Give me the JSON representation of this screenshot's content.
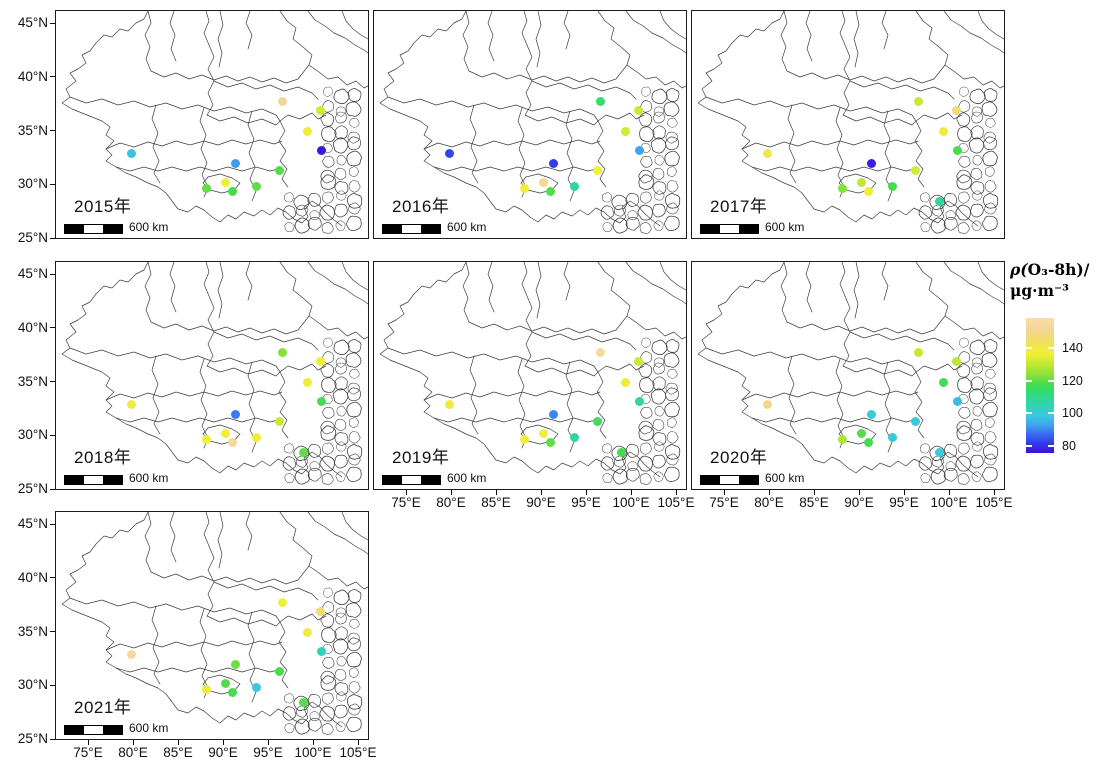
{
  "chart_data": {
    "type": "scatter",
    "subtype": "faceted-map-scatter",
    "scale_bar_label": "600 km",
    "axes": {
      "lon_tick_values": [
        75,
        80,
        85,
        90,
        95,
        100,
        105
      ],
      "lon_tick_labels": [
        "75°E",
        "80°E",
        "85°E",
        "90°E",
        "95°E",
        "100°E",
        "105°E"
      ],
      "lat_tick_values": [
        45,
        40,
        35,
        30,
        25
      ],
      "lat_tick_labels": [
        "45°N",
        "40°N",
        "35°N",
        "30°N",
        "25°N"
      ],
      "lon_range": [
        71.5,
        106.1
      ],
      "lat_range": [
        25.0,
        46.1
      ]
    },
    "colorbar": {
      "title_lines": [
        "ρ(O₃-8h)/",
        "μg·m⁻³"
      ],
      "tick_labels": [
        "140",
        "120",
        "100",
        "80"
      ],
      "tick_values": [
        140,
        120,
        100,
        80
      ],
      "value_range": [
        76,
        158
      ],
      "stops": [
        [
          158,
          "#F8DDA9"
        ],
        [
          151,
          "#F4D694"
        ],
        [
          145,
          "#F1DC6B"
        ],
        [
          140,
          "#F0E945"
        ],
        [
          136,
          "#EFEF33"
        ],
        [
          130,
          "#C2E934"
        ],
        [
          124,
          "#8FE23B"
        ],
        [
          118,
          "#48DB4D"
        ],
        [
          112,
          "#2FDA7C"
        ],
        [
          105,
          "#31D3B2"
        ],
        [
          99,
          "#38CBDC"
        ],
        [
          93,
          "#3FA4EC"
        ],
        [
          87,
          "#3767F0"
        ],
        [
          82,
          "#2F3CEB"
        ],
        [
          76,
          "#3D0EDF"
        ]
      ]
    },
    "stations": [
      {
        "lon": 96.6,
        "lat": 37.7
      },
      {
        "lon": 100.8,
        "lat": 36.9
      },
      {
        "lon": 99.4,
        "lat": 34.9
      },
      {
        "lon": 100.9,
        "lat": 33.1
      },
      {
        "lon": 79.8,
        "lat": 32.9
      },
      {
        "lon": 91.4,
        "lat": 31.9
      },
      {
        "lon": 96.3,
        "lat": 31.3
      },
      {
        "lon": 90.3,
        "lat": 30.2
      },
      {
        "lon": 88.2,
        "lat": 29.6
      },
      {
        "lon": 91.1,
        "lat": 29.3
      },
      {
        "lon": 93.7,
        "lat": 29.8
      },
      {
        "lon": 98.9,
        "lat": 28.4
      }
    ],
    "panels": [
      {
        "year_label": "2015年",
        "values": [
          151,
          132,
          138,
          77,
          98,
          92,
          119,
          137,
          120,
          118,
          120,
          null
        ]
      },
      {
        "year_label": "2016年",
        "values": [
          114,
          131,
          132,
          93,
          83,
          82,
          137,
          150,
          138,
          119,
          107,
          null
        ]
      },
      {
        "year_label": "2017年",
        "values": [
          130,
          147,
          139,
          118,
          141,
          78,
          132,
          130,
          123,
          137,
          118,
          108
        ]
      },
      {
        "year_label": "2018年",
        "values": [
          123,
          137,
          138,
          117,
          139,
          89,
          131,
          137,
          136,
          152,
          137,
          120
        ]
      },
      {
        "year_label": "2019年",
        "values": [
          154,
          131,
          138,
          108,
          139,
          90,
          116,
          137,
          137,
          120,
          108,
          118
        ]
      },
      {
        "year_label": "2020年",
        "values": [
          130,
          129,
          117,
          96,
          150,
          100,
          99,
          119,
          127,
          118,
          100,
          99
        ]
      },
      {
        "year_label": "2021年",
        "values": [
          137,
          146,
          139,
          103,
          153,
          121,
          118,
          119,
          138,
          118,
          100,
          119
        ]
      }
    ]
  }
}
